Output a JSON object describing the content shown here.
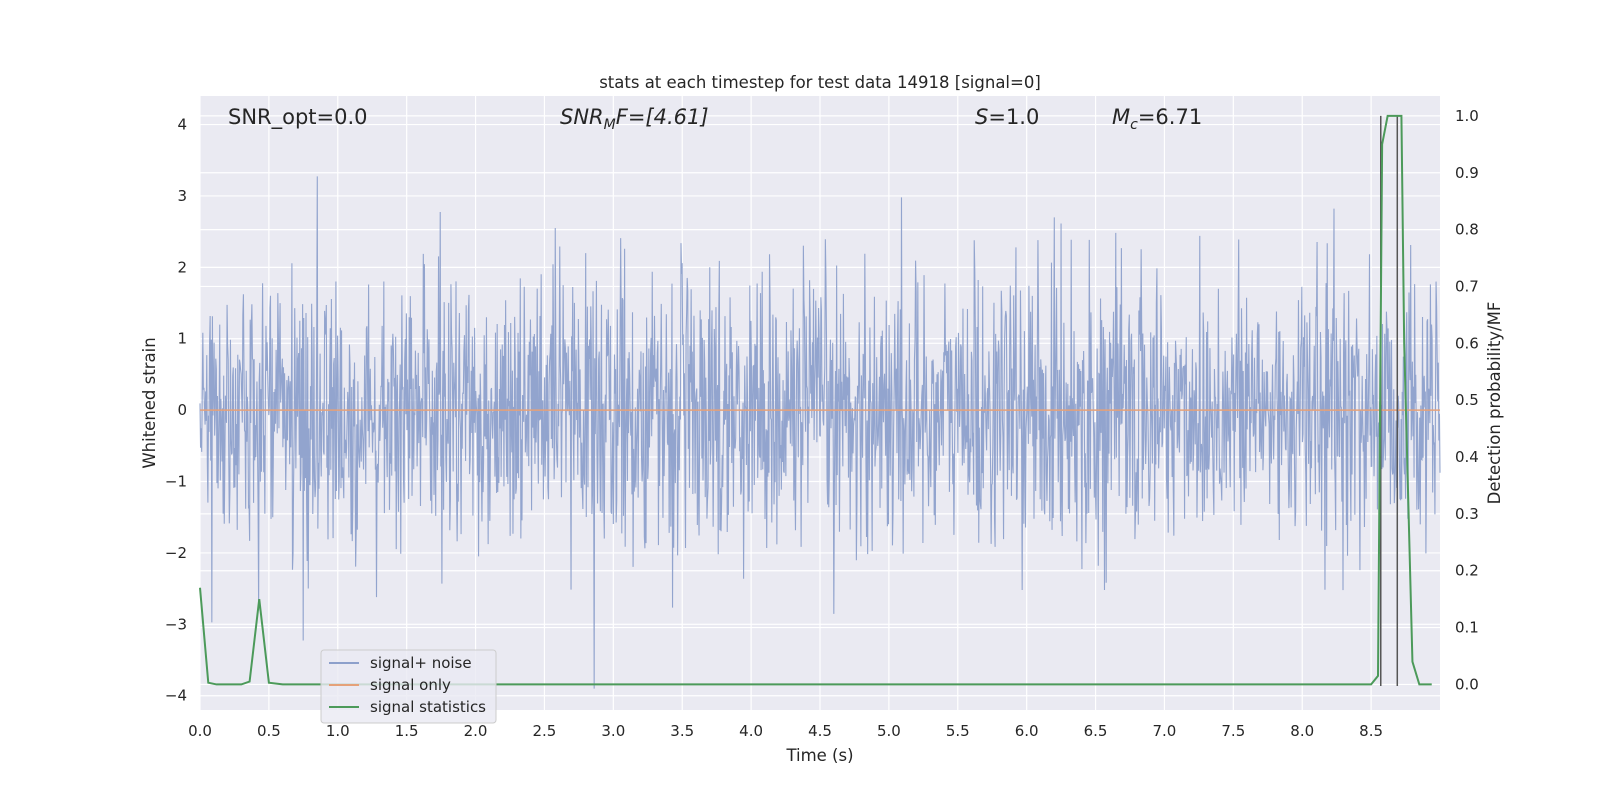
{
  "chart_data": {
    "type": "line",
    "title": "stats at each timestep for test data 14918 [signal=0]",
    "xlabel": "Time (s)",
    "ylabel": "Whitened strain",
    "ylabel_right": "Detection probability/MF",
    "xlim": [
      0.0,
      9.0
    ],
    "ylim": [
      -4.2,
      4.4
    ],
    "ylim_right": [
      -0.045,
      1.035
    ],
    "x_ticks": [
      "0.0",
      "0.5",
      "1.0",
      "1.5",
      "2.0",
      "2.5",
      "3.0",
      "3.5",
      "4.0",
      "4.5",
      "5.0",
      "5.5",
      "6.0",
      "6.5",
      "7.0",
      "7.5",
      "8.0",
      "8.5"
    ],
    "y_ticks": [
      "−4",
      "−3",
      "−2",
      "−1",
      "0",
      "1",
      "2",
      "3",
      "4"
    ],
    "y_ticks_right": [
      "0.0",
      "0.1",
      "0.2",
      "0.3",
      "0.4",
      "0.5",
      "0.6",
      "0.7",
      "0.8",
      "0.9",
      "1.0"
    ],
    "grid": true,
    "legend_position": "lower-left",
    "annotations": {
      "snr_opt": "SNR_opt=0.0",
      "snr_mf_sym": "SNR",
      "snr_mf_sub": "M",
      "snr_mf_rest": "F=[4.61]",
      "s_sym": "S",
      "s_rest": "=1.0",
      "mc_sym": "M",
      "mc_sub": "c",
      "mc_rest": "=6.71"
    },
    "series": [
      {
        "name": "signal+ noise",
        "color": "#8da0cb",
        "axis": "left",
        "description_values": "whitened noise, roughly within [-3.5, 4.0]"
      },
      {
        "name": "signal only",
        "color": "#e5a179",
        "axis": "left",
        "values_x": [
          0.0,
          9.0
        ],
        "values_y": [
          0.0,
          0.0
        ]
      },
      {
        "name": "signal statistics",
        "color": "#4c9a5a",
        "axis": "right",
        "x": [
          0.0,
          0.06,
          0.12,
          0.3,
          0.36,
          0.43,
          0.5,
          0.6,
          8.5,
          8.55,
          8.58,
          8.62,
          8.66,
          8.72,
          8.74,
          8.8,
          8.85,
          8.94
        ],
        "y": [
          0.17,
          0.003,
          0.0,
          0.0,
          0.005,
          0.15,
          0.003,
          0.0,
          0.0,
          0.015,
          0.95,
          1.0,
          1.0,
          1.0,
          0.6,
          0.04,
          0.0,
          0.0
        ]
      }
    ],
    "vertical_lines_x": [
      8.57,
      8.69
    ]
  }
}
